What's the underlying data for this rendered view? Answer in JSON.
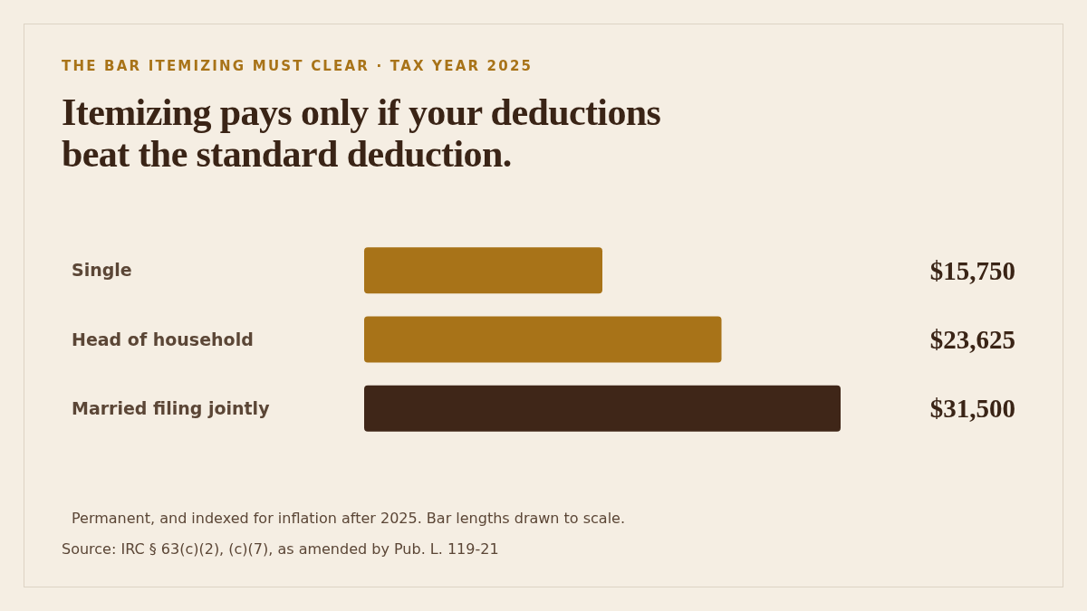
{
  "chart_data": {
    "type": "bar",
    "orientation": "horizontal",
    "subtitle": "THE BAR ITEMIZING MUST CLEAR · TAX YEAR 2025",
    "title": "Itemizing pays only if your deductions beat the standard deduction.",
    "categories": [
      "Single",
      "Head of household",
      "Married filing jointly"
    ],
    "values": [
      15750,
      23625,
      31500
    ],
    "colors": [
      "#a87318",
      "#a87318",
      "#3f2618"
    ],
    "value_labels": [
      "$15,750",
      "$23,625",
      "$31,500"
    ],
    "xlim": [
      0,
      31500
    ],
    "tick_labels": "y",
    "annotations": [
      "Permanent, and indexed for inflation after 2025. Bar lengths drawn to scale.",
      "Source: IRC § 63(c)(2), (c)(7), as amended by Pub. L. 119-21"
    ]
  }
}
